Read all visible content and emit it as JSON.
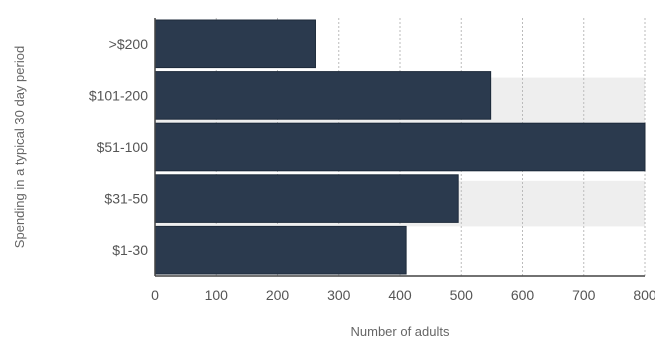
{
  "chart_data": {
    "type": "bar",
    "orientation": "horizontal",
    "categories": [
      ">$200",
      "$101-200",
      "$51-100",
      "$31-50",
      "$1-30"
    ],
    "values": [
      262,
      548,
      810,
      495,
      410
    ],
    "xlabel": "Number of adults",
    "ylabel": "Spending in a typical 30 day period",
    "xlim": [
      0,
      800
    ],
    "xticks": [
      "0",
      "100",
      "200",
      "300",
      "400",
      "500",
      "600",
      "700",
      "800"
    ],
    "grid": true,
    "colors": {
      "bar": "#2b3a4e",
      "band": "#eeeeee",
      "grid": "#bbbbbb",
      "axis": "#444444"
    }
  }
}
